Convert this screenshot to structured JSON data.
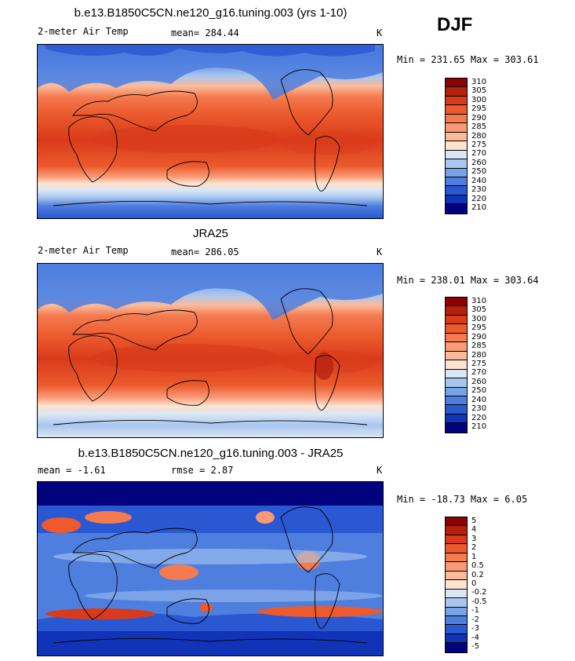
{
  "season_label": "DJF",
  "panels": [
    {
      "title": "b.e13.B1850C5CN.ne120_g16.tuning.003 (yrs 1-10)",
      "left_label": "2-meter Air Temp",
      "center_label": "mean= 284.44",
      "right_label": "K",
      "minmax": "Min = 231.65 Max = 303.61",
      "colorbar_ticks": [
        "310",
        "305",
        "300",
        "295",
        "290",
        "285",
        "280",
        "275",
        "270",
        "260",
        "250",
        "240",
        "230",
        "220",
        "210"
      ],
      "colorbar_colors": [
        "#8b0000",
        "#b3200e",
        "#d93b1a",
        "#ec5a2e",
        "#f47a4f",
        "#f99a75",
        "#fbbb9b",
        "#fde2cf",
        "#d8e6f6",
        "#a9c6ef",
        "#7aa3e6",
        "#4e7ede",
        "#2a58d2",
        "#1133b8",
        "#02027e"
      ]
    },
    {
      "title": "JRA25",
      "left_label": "2-meter Air Temp",
      "center_label": "mean= 286.05",
      "right_label": "K",
      "minmax": "Min = 238.01 Max = 303.64",
      "colorbar_ticks": [
        "310",
        "305",
        "300",
        "295",
        "290",
        "285",
        "280",
        "275",
        "270",
        "260",
        "250",
        "240",
        "230",
        "220",
        "210"
      ],
      "colorbar_colors": [
        "#8b0000",
        "#b3200e",
        "#d93b1a",
        "#ec5a2e",
        "#f47a4f",
        "#f99a75",
        "#fbbb9b",
        "#fde2cf",
        "#d8e6f6",
        "#a9c6ef",
        "#7aa3e6",
        "#4e7ede",
        "#2a58d2",
        "#1133b8",
        "#02027e"
      ]
    },
    {
      "title": "b.e13.B1850C5CN.ne120_g16.tuning.003 - JRA25",
      "left_label": "mean =   -1.61",
      "center_label": "rmse =    2.87",
      "right_label": "K",
      "minmax": "Min = -18.73 Max =    6.05",
      "colorbar_ticks": [
        "5",
        "4",
        "3",
        "2",
        "1",
        "0.5",
        "0.2",
        "0",
        "-0.2",
        "-0.5",
        "-1",
        "-2",
        "-3",
        "-4",
        "-5"
      ],
      "colorbar_colors": [
        "#8b0000",
        "#b3200e",
        "#d93b1a",
        "#ec5a2e",
        "#f47a4f",
        "#f99a75",
        "#fbbb9b",
        "#fde2cf",
        "#d8e6f6",
        "#a9c6ef",
        "#7aa3e6",
        "#4e7ede",
        "#2a58d2",
        "#1133b8",
        "#02027e"
      ]
    }
  ]
}
